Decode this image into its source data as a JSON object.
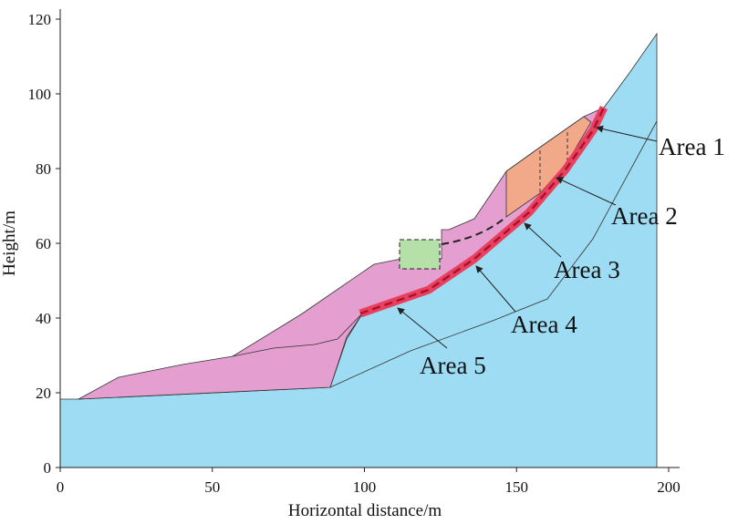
{
  "chart_data": {
    "type": "profile",
    "x_label": "Horizontal distance/m",
    "y_label": "Height/m",
    "xlim": [
      0,
      200
    ],
    "xticks": [
      0,
      50,
      100,
      150,
      200
    ],
    "ylim": [
      0,
      120
    ],
    "yticks": [
      0,
      20,
      40,
      60,
      80,
      100,
      120
    ],
    "annotations": [
      "Area 1",
      "Area 2",
      "Area 3",
      "Area 4",
      "Area 5"
    ]
  }
}
